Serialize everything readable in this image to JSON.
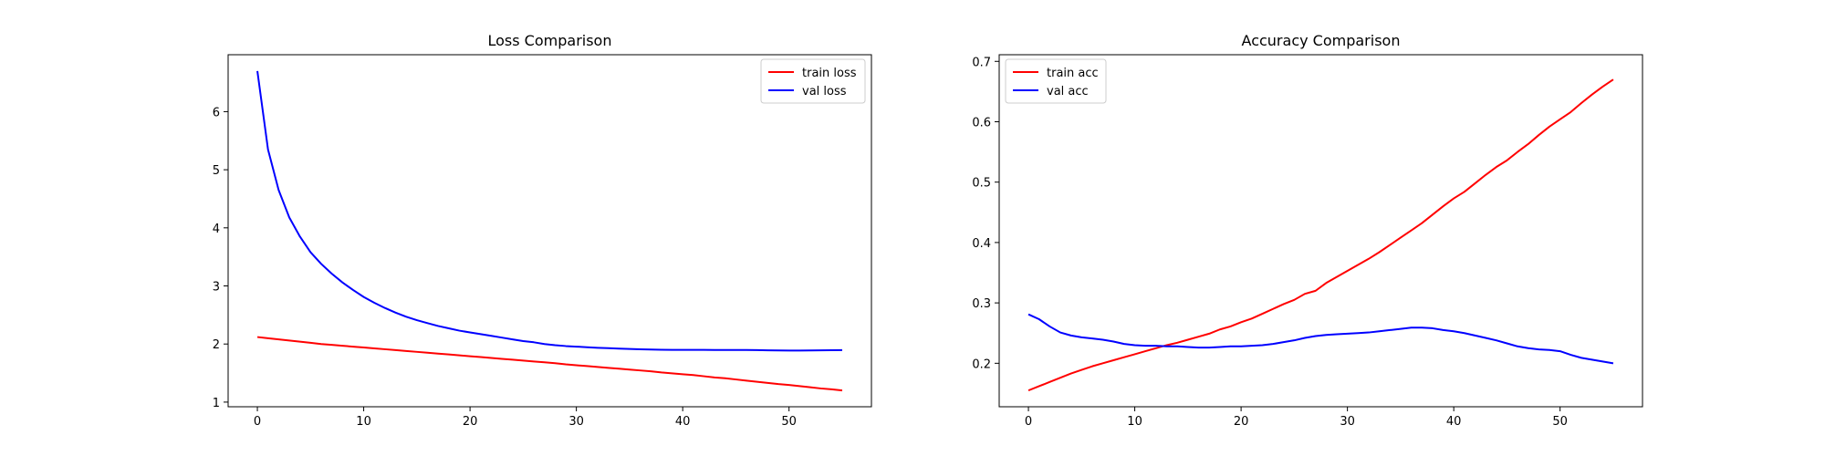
{
  "chart_data": [
    {
      "type": "line",
      "title": "Loss Comparison",
      "xlabel": "",
      "ylabel": "",
      "xlim": [
        -2.75,
        57.75
      ],
      "ylim": [
        0.92,
        6.98
      ],
      "xticks": [
        0,
        10,
        20,
        30,
        40,
        50
      ],
      "yticks": [
        1,
        2,
        3,
        4,
        5,
        6
      ],
      "grid": false,
      "legend": "upper right",
      "series": [
        {
          "name": "train loss",
          "color": "#ff0000",
          "x": [
            0,
            1,
            2,
            3,
            4,
            5,
            6,
            7,
            8,
            9,
            10,
            11,
            12,
            13,
            14,
            15,
            16,
            17,
            18,
            19,
            20,
            21,
            22,
            23,
            24,
            25,
            26,
            27,
            28,
            29,
            30,
            31,
            32,
            33,
            34,
            35,
            36,
            37,
            38,
            39,
            40,
            41,
            42,
            43,
            44,
            45,
            46,
            47,
            48,
            49,
            50,
            51,
            52,
            53,
            54,
            55
          ],
          "y": [
            2.12,
            2.1,
            2.08,
            2.06,
            2.04,
            2.02,
            2.0,
            1.985,
            1.97,
            1.955,
            1.94,
            1.925,
            1.91,
            1.895,
            1.88,
            1.865,
            1.85,
            1.835,
            1.82,
            1.805,
            1.79,
            1.775,
            1.76,
            1.745,
            1.73,
            1.715,
            1.7,
            1.685,
            1.67,
            1.65,
            1.635,
            1.62,
            1.605,
            1.59,
            1.575,
            1.56,
            1.545,
            1.53,
            1.51,
            1.495,
            1.48,
            1.465,
            1.445,
            1.425,
            1.41,
            1.39,
            1.37,
            1.35,
            1.33,
            1.31,
            1.295,
            1.275,
            1.255,
            1.235,
            1.22,
            1.2
          ]
        },
        {
          "name": "val loss",
          "color": "#0000ff",
          "x": [
            0,
            1,
            2,
            3,
            4,
            5,
            6,
            7,
            8,
            9,
            10,
            11,
            12,
            13,
            14,
            15,
            16,
            17,
            18,
            19,
            20,
            21,
            22,
            23,
            24,
            25,
            26,
            27,
            28,
            29,
            30,
            31,
            32,
            33,
            34,
            35,
            36,
            37,
            38,
            39,
            40,
            41,
            42,
            43,
            44,
            45,
            46,
            47,
            48,
            49,
            50,
            51,
            52,
            53,
            54,
            55
          ],
          "y": [
            6.7,
            5.35,
            4.65,
            4.18,
            3.85,
            3.58,
            3.38,
            3.21,
            3.06,
            2.93,
            2.81,
            2.71,
            2.62,
            2.54,
            2.47,
            2.41,
            2.36,
            2.31,
            2.27,
            2.23,
            2.2,
            2.17,
            2.14,
            2.11,
            2.08,
            2.05,
            2.03,
            2.0,
            1.98,
            1.965,
            1.955,
            1.945,
            1.935,
            1.928,
            1.92,
            1.915,
            1.91,
            1.905,
            1.902,
            1.9,
            1.9,
            1.9,
            1.9,
            1.898,
            1.898,
            1.898,
            1.898,
            1.895,
            1.892,
            1.89,
            1.888,
            1.888,
            1.89,
            1.892,
            1.894,
            1.896
          ]
        }
      ]
    },
    {
      "type": "line",
      "title": "Accuracy Comparison",
      "xlabel": "",
      "ylabel": "",
      "xlim": [
        -2.75,
        57.75
      ],
      "ylim": [
        0.128,
        0.711
      ],
      "xticks": [
        0,
        10,
        20,
        30,
        40,
        50
      ],
      "yticks": [
        0.2,
        0.3,
        0.4,
        0.5,
        0.6,
        0.7
      ],
      "grid": false,
      "legend": "upper left",
      "series": [
        {
          "name": "train acc",
          "color": "#ff0000",
          "x": [
            0,
            1,
            2,
            3,
            4,
            5,
            6,
            7,
            8,
            9,
            10,
            11,
            12,
            13,
            14,
            15,
            16,
            17,
            18,
            19,
            20,
            21,
            22,
            23,
            24,
            25,
            26,
            27,
            28,
            29,
            30,
            31,
            32,
            33,
            34,
            35,
            36,
            37,
            38,
            39,
            40,
            41,
            42,
            43,
            44,
            45,
            46,
            47,
            48,
            49,
            50,
            51,
            52,
            53,
            54,
            55
          ],
          "y": [
            0.155,
            0.162,
            0.169,
            0.176,
            0.183,
            0.189,
            0.195,
            0.2,
            0.205,
            0.21,
            0.215,
            0.22,
            0.225,
            0.23,
            0.234,
            0.239,
            0.244,
            0.249,
            0.256,
            0.261,
            0.268,
            0.274,
            0.282,
            0.29,
            0.298,
            0.305,
            0.315,
            0.32,
            0.333,
            0.343,
            0.353,
            0.363,
            0.373,
            0.384,
            0.396,
            0.408,
            0.42,
            0.432,
            0.446,
            0.46,
            0.473,
            0.484,
            0.498,
            0.512,
            0.525,
            0.536,
            0.55,
            0.563,
            0.578,
            0.592,
            0.604,
            0.616,
            0.631,
            0.645,
            0.658,
            0.67
          ]
        },
        {
          "name": "val acc",
          "color": "#0000ff",
          "x": [
            0,
            1,
            2,
            3,
            4,
            5,
            6,
            7,
            8,
            9,
            10,
            11,
            12,
            13,
            14,
            15,
            16,
            17,
            18,
            19,
            20,
            21,
            22,
            23,
            24,
            25,
            26,
            27,
            28,
            29,
            30,
            31,
            32,
            33,
            34,
            35,
            36,
            37,
            38,
            39,
            40,
            41,
            42,
            43,
            44,
            45,
            46,
            47,
            48,
            49,
            50,
            51,
            52,
            53,
            54,
            55
          ],
          "y": [
            0.281,
            0.273,
            0.261,
            0.251,
            0.246,
            0.243,
            0.241,
            0.239,
            0.236,
            0.232,
            0.23,
            0.229,
            0.229,
            0.228,
            0.228,
            0.227,
            0.226,
            0.226,
            0.227,
            0.228,
            0.228,
            0.229,
            0.23,
            0.232,
            0.235,
            0.238,
            0.242,
            0.245,
            0.247,
            0.248,
            0.249,
            0.25,
            0.251,
            0.253,
            0.255,
            0.257,
            0.259,
            0.259,
            0.258,
            0.255,
            0.253,
            0.25,
            0.246,
            0.242,
            0.238,
            0.233,
            0.228,
            0.225,
            0.223,
            0.222,
            0.22,
            0.214,
            0.209,
            0.206,
            0.203,
            0.2
          ]
        }
      ]
    }
  ]
}
